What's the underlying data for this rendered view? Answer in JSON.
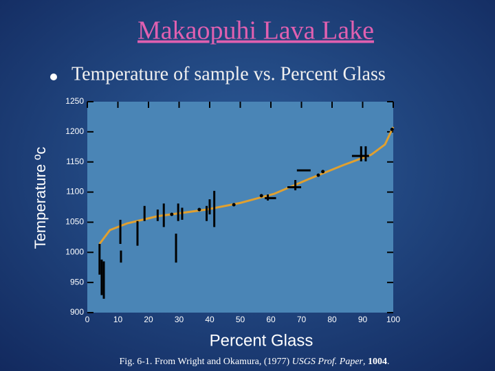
{
  "chart_data": {
    "type": "scatter",
    "title": "Makaopuhi Lava Lake",
    "subtitle": "Temperature of sample vs. Percent Glass",
    "xlabel": "Percent Glass",
    "ylabel": "Temperature ºc",
    "caption": [
      "Fig. 6-1. From Wright and Okamura, (1977) ",
      "USGS Prof. Paper",
      ", ",
      "1004",
      "."
    ],
    "xlim": [
      0,
      100
    ],
    "xticks": [
      0,
      10,
      20,
      30,
      40,
      50,
      60,
      70,
      80,
      90,
      100
    ],
    "ylim": [
      900,
      1250
    ],
    "yticks": [
      900,
      950,
      1000,
      1050,
      1100,
      1150,
      1200,
      1250
    ],
    "color": "#000000",
    "points": {
      "x": [
        27.6,
        36.6,
        47.9,
        56.9,
        75.5,
        77,
        99.6
      ],
      "y": [
        1063,
        1071,
        1079,
        1094,
        1128,
        1134,
        1204
      ]
    },
    "yranges": {
      "x": [
        4,
        4.7,
        5.4,
        10.8,
        11,
        16.4,
        18.7,
        23,
        25,
        29,
        29.7,
        31,
        39,
        40,
        41.5,
        59,
        68,
        89.5,
        91
      ],
      "ymin": [
        963,
        929,
        923,
        1014,
        983,
        1011,
        1052,
        1052,
        1042,
        983,
        1052,
        1054,
        1052,
        1063,
        1042,
        1086,
        1103,
        1151,
        1151
      ],
      "ymax": [
        1014,
        988,
        985,
        1054,
        1003,
        1052,
        1077,
        1071,
        1081,
        1031,
        1081,
        1074,
        1077,
        1088,
        1102,
        1096,
        1120,
        1176,
        1176
      ]
    },
    "xranges": {
      "y": [
        1090,
        1108,
        1136,
        1160
      ],
      "xmin": [
        58,
        65.4,
        68.5,
        86.5
      ],
      "xmax": [
        61.7,
        69.9,
        73,
        92.1
      ]
    },
    "curve": {
      "color": "#e0a030",
      "x": [
        4,
        7.4,
        13,
        23,
        39,
        50,
        61,
        72.6,
        83.8,
        92.8,
        97.3,
        100
      ],
      "y": [
        1014,
        1037,
        1048,
        1060,
        1071,
        1082,
        1097,
        1122,
        1145,
        1162,
        1179,
        1208
      ]
    }
  }
}
